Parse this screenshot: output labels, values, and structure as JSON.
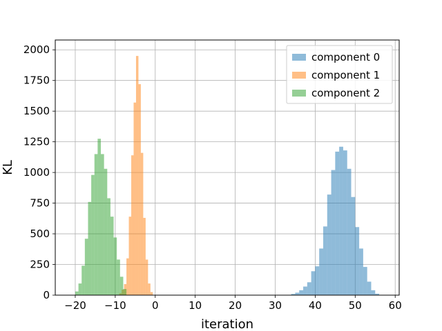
{
  "chart_data": {
    "type": "histogram",
    "xlabel": "iteration",
    "ylabel": "KL",
    "xlim": [
      -25,
      61
    ],
    "ylim": [
      0,
      2080
    ],
    "xticks": [
      -20,
      -10,
      0,
      10,
      20,
      30,
      40,
      50,
      60
    ],
    "xtick_labels": [
      "−20",
      "−10",
      "0",
      "10",
      "20",
      "30",
      "40",
      "50",
      "60"
    ],
    "yticks": [
      0,
      250,
      500,
      750,
      1000,
      1250,
      1500,
      1750,
      2000
    ],
    "ytick_labels": [
      "0",
      "250",
      "500",
      "750",
      "1000",
      "1250",
      "1500",
      "1750",
      "2000"
    ],
    "grid": true,
    "legend_position": "top-right",
    "series": [
      {
        "name": "component 0",
        "color": "#1f77b4",
        "alpha": 0.5,
        "bin_width": 1.0,
        "bins": [
          {
            "x": 34,
            "y": 10
          },
          {
            "x": 35,
            "y": 20
          },
          {
            "x": 36,
            "y": 40
          },
          {
            "x": 37,
            "y": 70
          },
          {
            "x": 38,
            "y": 105
          },
          {
            "x": 39,
            "y": 195
          },
          {
            "x": 40,
            "y": 235
          },
          {
            "x": 41,
            "y": 380
          },
          {
            "x": 42,
            "y": 560
          },
          {
            "x": 43,
            "y": 820
          },
          {
            "x": 44,
            "y": 1020
          },
          {
            "x": 45,
            "y": 1170
          },
          {
            "x": 46,
            "y": 1210
          },
          {
            "x": 47,
            "y": 1180
          },
          {
            "x": 48,
            "y": 1030
          },
          {
            "x": 49,
            "y": 800
          },
          {
            "x": 50,
            "y": 555
          },
          {
            "x": 51,
            "y": 380
          },
          {
            "x": 52,
            "y": 230
          },
          {
            "x": 53,
            "y": 110
          },
          {
            "x": 54,
            "y": 40
          },
          {
            "x": 55,
            "y": 12
          }
        ]
      },
      {
        "name": "component 1",
        "color": "#ff7f0e",
        "alpha": 0.5,
        "bin_width": 0.6,
        "bins": [
          {
            "x": -9.0,
            "y": 15
          },
          {
            "x": -8.4,
            "y": 45
          },
          {
            "x": -7.8,
            "y": 90
          },
          {
            "x": -7.2,
            "y": 300
          },
          {
            "x": -6.6,
            "y": 640
          },
          {
            "x": -6.0,
            "y": 1140
          },
          {
            "x": -5.4,
            "y": 1570
          },
          {
            "x": -4.8,
            "y": 1950
          },
          {
            "x": -4.2,
            "y": 1720
          },
          {
            "x": -3.6,
            "y": 1160
          },
          {
            "x": -3.0,
            "y": 630
          },
          {
            "x": -2.4,
            "y": 290
          },
          {
            "x": -1.8,
            "y": 95
          },
          {
            "x": -1.2,
            "y": 25
          }
        ]
      },
      {
        "name": "component 2",
        "color": "#2ca02c",
        "alpha": 0.5,
        "bin_width": 0.8,
        "bins": [
          {
            "x": -20.0,
            "y": 30
          },
          {
            "x": -19.2,
            "y": 95
          },
          {
            "x": -18.4,
            "y": 240
          },
          {
            "x": -17.6,
            "y": 460
          },
          {
            "x": -16.8,
            "y": 760
          },
          {
            "x": -16.0,
            "y": 980
          },
          {
            "x": -15.2,
            "y": 1150
          },
          {
            "x": -14.4,
            "y": 1275
          },
          {
            "x": -13.6,
            "y": 1150
          },
          {
            "x": -12.8,
            "y": 1030
          },
          {
            "x": -12.0,
            "y": 790
          },
          {
            "x": -11.2,
            "y": 640
          },
          {
            "x": -10.4,
            "y": 470
          },
          {
            "x": -9.6,
            "y": 290
          },
          {
            "x": -8.8,
            "y": 150
          },
          {
            "x": -8.0,
            "y": 50
          }
        ]
      }
    ]
  }
}
